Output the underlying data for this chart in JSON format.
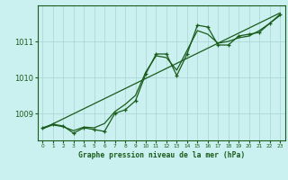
{
  "bg_color": "#caf0f0",
  "grid_color": "#b0d8d8",
  "line_color": "#1a5c1a",
  "xlabel": "Graphe pression niveau de la mer (hPa)",
  "ylabel_ticks": [
    1009,
    1010,
    1011
  ],
  "xlim": [
    -0.5,
    23.5
  ],
  "ylim": [
    1008.25,
    1012.0
  ],
  "hours": [
    0,
    1,
    2,
    3,
    4,
    5,
    6,
    7,
    8,
    9,
    10,
    11,
    12,
    13,
    14,
    15,
    16,
    17,
    18,
    19,
    20,
    21,
    22,
    23
  ],
  "pressure_main": [
    1008.6,
    1008.7,
    1008.65,
    1008.45,
    1008.6,
    1008.55,
    1008.5,
    1009.0,
    1009.1,
    1009.35,
    1010.1,
    1010.65,
    1010.65,
    1010.05,
    1010.65,
    1011.45,
    1011.4,
    1010.9,
    1010.9,
    1011.15,
    1011.2,
    1011.25,
    1011.5,
    1011.75
  ],
  "pressure_trend": [
    1008.57,
    1008.71,
    1008.85,
    1008.99,
    1009.13,
    1009.27,
    1009.41,
    1009.55,
    1009.69,
    1009.83,
    1009.97,
    1010.11,
    1010.25,
    1010.39,
    1010.53,
    1010.67,
    1010.81,
    1010.95,
    1011.09,
    1011.23,
    1011.37,
    1011.51,
    1011.65,
    1011.79
  ],
  "pressure_smooth": [
    1008.58,
    1008.68,
    1008.63,
    1008.52,
    1008.62,
    1008.6,
    1008.72,
    1009.05,
    1009.25,
    1009.5,
    1010.15,
    1010.6,
    1010.55,
    1010.2,
    1010.75,
    1011.3,
    1011.2,
    1010.95,
    1011.0,
    1011.1,
    1011.15,
    1011.3,
    1011.5,
    1011.72
  ],
  "xtick_labels": [
    "0",
    "1",
    "2",
    "3",
    "4",
    "5",
    "6",
    "7",
    "8",
    "9",
    "10",
    "11",
    "12",
    "13",
    "14",
    "15",
    "16",
    "17",
    "18",
    "19",
    "20",
    "21",
    "22",
    "23"
  ]
}
